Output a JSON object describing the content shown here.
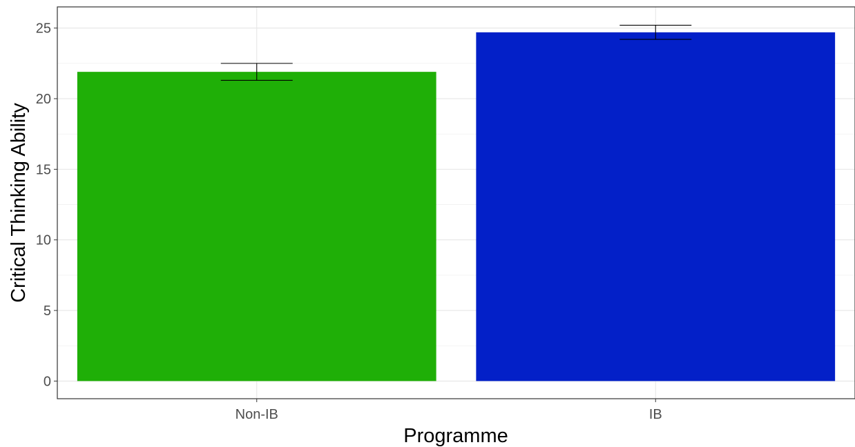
{
  "chart_data": {
    "type": "bar",
    "categories": [
      "Non-IB",
      "IB"
    ],
    "values": [
      21.9,
      24.7
    ],
    "error_bars": [
      {
        "lower": 21.3,
        "upper": 22.5
      },
      {
        "lower": 24.2,
        "upper": 25.2
      }
    ],
    "colors": [
      "#1faf07",
      "#0320c8"
    ],
    "xlabel": "Programme",
    "ylabel": "Critical Thinking Ability",
    "ylim": [
      -1.25,
      26.5
    ],
    "yticks": [
      "0",
      "5",
      "10",
      "15",
      "20",
      "25"
    ],
    "grid": true,
    "legend": "none"
  }
}
